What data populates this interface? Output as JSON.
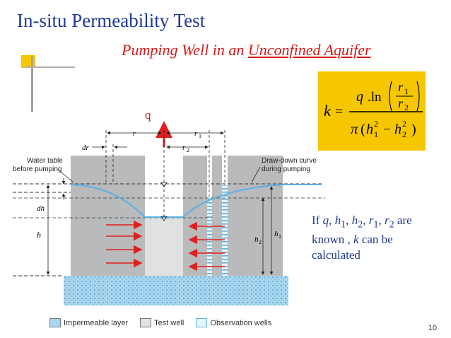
{
  "title": "In-situ Permeability Test",
  "subtitle": {
    "part1": "Pumping Well in an ",
    "part2": "Unconfined Aquifer"
  },
  "formula": {
    "lhs": "k",
    "eq": "=",
    "q": "q",
    "ln": ".ln",
    "r1": "r",
    "r1_sub": "1",
    "r2": "r",
    "r2_sub": "2",
    "pi": "π",
    "open": "(",
    "h1": "h",
    "h1_sub": "1",
    "sup2a": "2",
    "minus": "−",
    "h2": "h",
    "h2_sub": "2",
    "sup2b": "2",
    "close": ")"
  },
  "diagram": {
    "q": "q",
    "water_table_line1": "Water table",
    "water_table_line2": "before pumping",
    "drawdown_line1": "Draw-down curve",
    "drawdown_line2": "during pumping",
    "dr": "dr",
    "r": "r",
    "r1": "r",
    "r1_sub": "1",
    "r2": "r",
    "r2_sub": "2",
    "dh": "dh",
    "h": "h",
    "h1": "h",
    "h1_sub": "1",
    "h2": "h",
    "h2_sub": "2",
    "colors": {
      "soil": "#b9babb",
      "well": "#dfe1e2",
      "water": "#5ab0e6",
      "arrow": "#e02020",
      "base": "#9fd0ec"
    }
  },
  "known_text": {
    "if": "If ",
    "q": "q",
    "c1": ", ",
    "h1": "h",
    "h1_sub": "1",
    "c2": ", ",
    "h2": "h",
    "h2_sub": "2",
    "c3": ", ",
    "r1": "r",
    "r1_sub": "1",
    "c4": ", ",
    "r2": "r",
    "r2_sub": "2",
    "are": " are known , ",
    "k": "k",
    "rest": " can be calculated"
  },
  "legend": {
    "impermeable": "Impermeable layer",
    "test_well": "Test well",
    "observation": "Observation wells"
  },
  "slide_number": "10"
}
